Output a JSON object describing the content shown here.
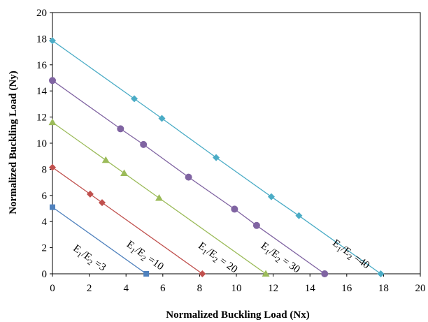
{
  "chart_data": {
    "type": "line",
    "title": "",
    "xlabel": "Normalized Buckling Load (Nx)",
    "ylabel": "Normalized Buckling Load (Ny)",
    "xlim": [
      0,
      20
    ],
    "ylim": [
      0,
      20
    ],
    "xticks": [
      0,
      2,
      4,
      6,
      8,
      10,
      12,
      14,
      16,
      18,
      20
    ],
    "yticks": [
      0,
      2,
      4,
      6,
      8,
      10,
      12,
      14,
      16,
      18,
      20
    ],
    "grid": false,
    "legend": "none",
    "series": [
      {
        "label": [
          "E",
          "1",
          "/E",
          "2",
          " =3"
        ],
        "color": "#4f81bd",
        "marker": "square",
        "x": [
          0,
          5.1
        ],
        "y": [
          5.1,
          0
        ]
      },
      {
        "label": [
          "E",
          "1",
          "/E",
          "2",
          " =10"
        ],
        "color": "#c0504d",
        "marker": "diamond",
        "x": [
          0,
          2.05,
          2.7,
          8.15
        ],
        "y": [
          8.15,
          6.1,
          5.45,
          0
        ]
      },
      {
        "label": [
          "E",
          "1",
          "/E",
          "2",
          " = 20"
        ],
        "color": "#9bbb59",
        "marker": "triangle",
        "x": [
          0,
          2.9,
          3.9,
          5.8,
          11.6
        ],
        "y": [
          11.6,
          8.7,
          7.7,
          5.8,
          0
        ]
      },
      {
        "label": [
          "E",
          "1",
          "/E",
          "2",
          " = 30"
        ],
        "color": "#8064a2",
        "marker": "circle",
        "x": [
          0,
          3.7,
          4.95,
          7.4,
          9.9,
          11.1,
          14.8
        ],
        "y": [
          14.8,
          11.1,
          9.9,
          7.4,
          4.95,
          3.7,
          0
        ]
      },
      {
        "label": [
          "E",
          "1",
          "/E",
          "2",
          " =40"
        ],
        "color": "#4bacc6",
        "marker": "diamond",
        "x": [
          0,
          4.45,
          5.95,
          8.9,
          11.9,
          13.4,
          17.85
        ],
        "y": [
          17.85,
          13.4,
          11.9,
          8.9,
          5.9,
          4.45,
          0
        ]
      }
    ]
  }
}
